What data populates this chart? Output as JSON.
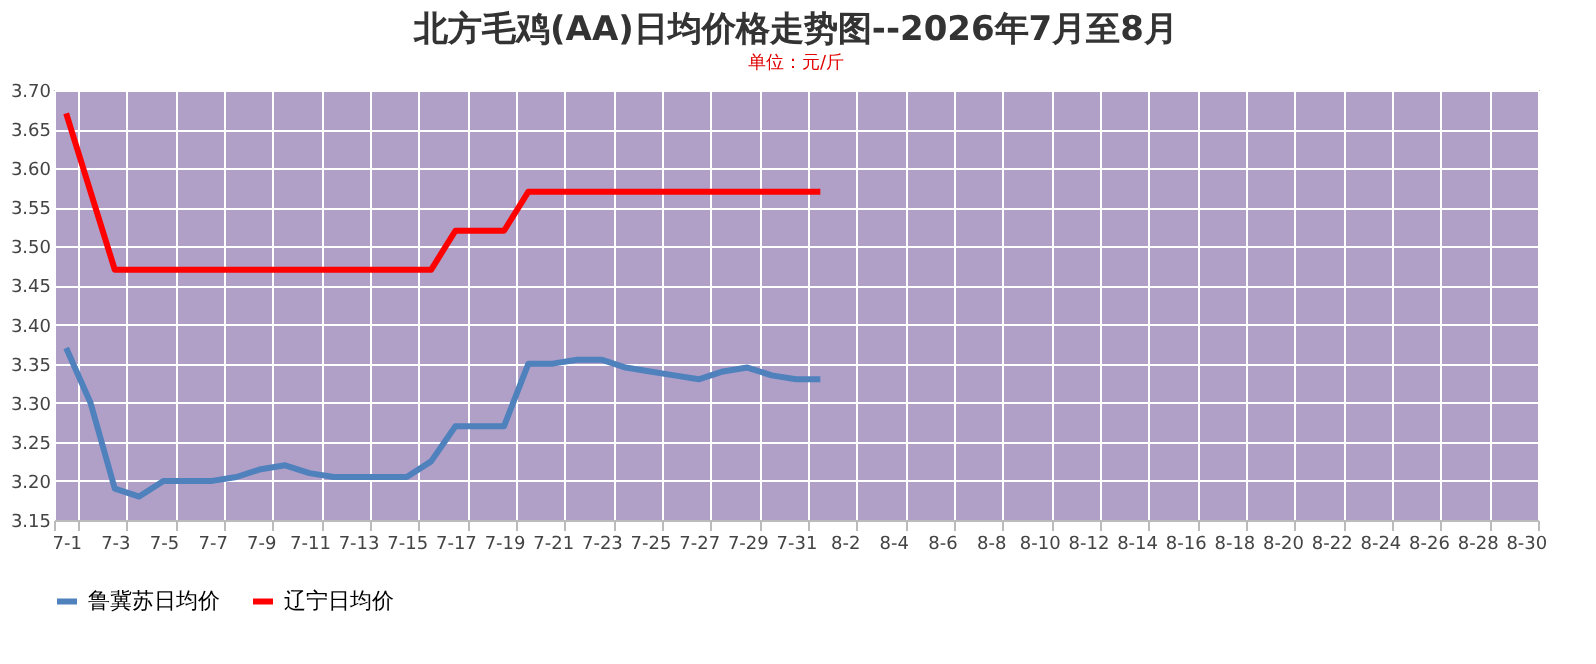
{
  "chart_data": {
    "type": "line",
    "title": "北方毛鸡(AA)日均价格走势图--2026年7月至8月",
    "subtitle": "单位：元/斤",
    "categories": [
      "7-1",
      null,
      "7-3",
      null,
      "7-5",
      null,
      "7-7",
      null,
      "7-9",
      null,
      "7-11",
      null,
      "7-13",
      null,
      "7-15",
      null,
      "7-17",
      null,
      "7-19",
      null,
      "7-21",
      null,
      "7-23",
      null,
      "7-25",
      null,
      "7-27",
      null,
      "7-29",
      null,
      "7-31",
      null,
      "8-2",
      null,
      "8-4",
      null,
      "8-6",
      null,
      "8-8",
      null,
      "8-10",
      null,
      "8-12",
      null,
      "8-14",
      null,
      "8-16",
      null,
      "8-18",
      null,
      "8-20",
      null,
      "8-22",
      null,
      "8-24",
      null,
      "8-26",
      null,
      "8-28",
      null,
      "8-30"
    ],
    "series": [
      {
        "name": "鲁冀苏日均价",
        "color": "#4f81bd",
        "values": [
          3.37,
          3.3,
          3.19,
          3.18,
          3.2,
          3.2,
          3.2,
          3.205,
          3.215,
          3.22,
          3.21,
          3.205,
          3.205,
          3.205,
          3.205,
          3.225,
          3.27,
          3.27,
          3.27,
          3.35,
          3.35,
          3.355,
          3.355,
          3.345,
          3.34,
          3.335,
          3.33,
          3.34,
          3.345,
          3.335,
          3.33,
          3.33,
          null,
          null,
          null,
          null,
          null,
          null,
          null,
          null,
          null,
          null,
          null,
          null,
          null,
          null,
          null,
          null,
          null,
          null,
          null,
          null,
          null,
          null,
          null,
          null,
          null,
          null,
          null,
          null,
          null
        ]
      },
      {
        "name": "辽宁日均价",
        "color": "#ff0000",
        "values": [
          3.67,
          3.57,
          3.47,
          3.47,
          3.47,
          3.47,
          3.47,
          3.47,
          3.47,
          3.47,
          3.47,
          3.47,
          3.47,
          3.47,
          3.47,
          3.47,
          3.52,
          3.52,
          3.52,
          3.57,
          3.57,
          3.57,
          3.57,
          3.57,
          3.57,
          3.57,
          3.57,
          3.57,
          3.57,
          3.57,
          3.57,
          3.57,
          null,
          null,
          null,
          null,
          null,
          null,
          null,
          null,
          null,
          null,
          null,
          null,
          null,
          null,
          null,
          null,
          null,
          null,
          null,
          null,
          null,
          null,
          null,
          null,
          null,
          null,
          null,
          null,
          null
        ]
      }
    ],
    "ylim": [
      3.15,
      3.7
    ],
    "yticks": [
      3.15,
      {
        "value": 3.2,
        "label": "3.20"
      },
      3.25,
      {
        "value": 3.3,
        "label": "3.30"
      },
      3.35,
      {
        "value": 3.4,
        "label": "3.40"
      },
      3.45,
      {
        "value": 3.5,
        "label": "3.50"
      },
      3.55,
      {
        "value": 3.6,
        "label": "3.60"
      },
      3.65,
      {
        "value": 3.7,
        "label": "3.70"
      }
    ],
    "grid": true,
    "legend": "bottom",
    "line_style": "solid",
    "marker": "none"
  }
}
